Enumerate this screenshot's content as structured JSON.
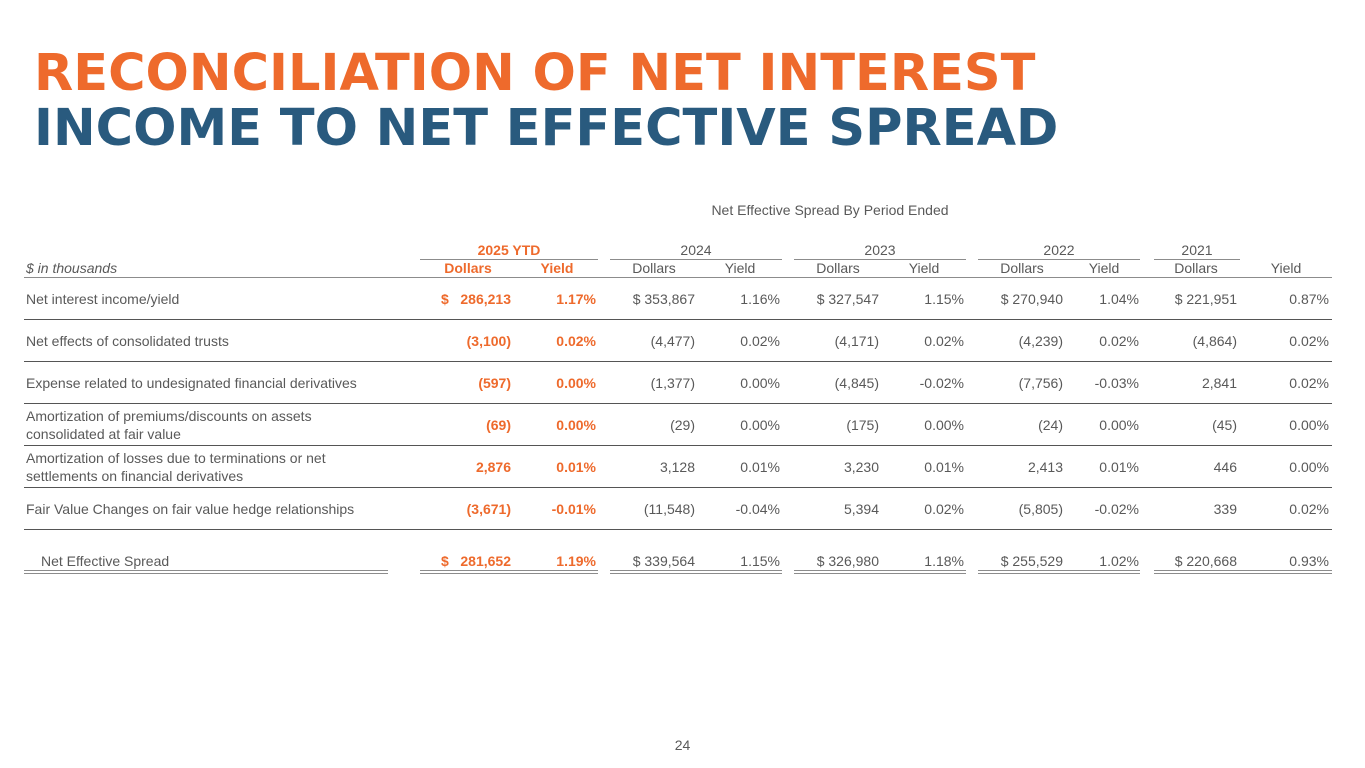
{
  "title": {
    "line1": "RECONCILIATION OF NET INTEREST",
    "line2": "INCOME TO NET EFFECTIVE SPREAD"
  },
  "table": {
    "caption": "Net Effective Spread By Period Ended",
    "units_label": "$ in thousands",
    "years": [
      "2025 YTD",
      "2024",
      "2023",
      "2022",
      "2021"
    ],
    "col_dollars": "Dollars",
    "col_yield": "Yield",
    "rows": [
      {
        "label": "Net interest income/yield",
        "cells": [
          [
            "$   286,213",
            "1.17%"
          ],
          [
            "$ 353,867",
            "1.16%"
          ],
          [
            "$ 327,547",
            "1.15%"
          ],
          [
            "$ 270,940",
            "1.04%"
          ],
          [
            "$ 221,951",
            "0.87%"
          ]
        ]
      },
      {
        "label": "Net effects of consolidated trusts",
        "cells": [
          [
            "(3,100)",
            "0.02%"
          ],
          [
            "(4,477)",
            "0.02%"
          ],
          [
            "(4,171)",
            "0.02%"
          ],
          [
            "(4,239)",
            "0.02%"
          ],
          [
            "(4,864)",
            "0.02%"
          ]
        ]
      },
      {
        "label": "Expense related to undesignated financial derivatives",
        "cells": [
          [
            "(597)",
            "0.00%"
          ],
          [
            "(1,377)",
            "0.00%"
          ],
          [
            "(4,845)",
            "-0.02%"
          ],
          [
            "(7,756)",
            "-0.03%"
          ],
          [
            "2,841",
            "0.02%"
          ]
        ]
      },
      {
        "label": "Amortization of premiums/discounts on assets consolidated at fair value",
        "cells": [
          [
            "(69)",
            "0.00%"
          ],
          [
            "(29)",
            "0.00%"
          ],
          [
            "(175)",
            "0.00%"
          ],
          [
            "(24)",
            "0.00%"
          ],
          [
            "(45)",
            "0.00%"
          ]
        ]
      },
      {
        "label": "Amortization of losses due to terminations or net settlements on financial derivatives",
        "cells": [
          [
            "2,876",
            "0.01%"
          ],
          [
            "3,128",
            "0.01%"
          ],
          [
            "3,230",
            "0.01%"
          ],
          [
            "2,413",
            "0.01%"
          ],
          [
            "446",
            "0.00%"
          ]
        ]
      },
      {
        "label": "Fair Value Changes on fair value hedge relationships",
        "cells": [
          [
            "(3,671)",
            "-0.01%"
          ],
          [
            "(11,548)",
            "-0.04%"
          ],
          [
            "5,394",
            "0.02%"
          ],
          [
            "(5,805)",
            "-0.02%"
          ],
          [
            "339",
            "0.02%"
          ]
        ]
      }
    ],
    "total": {
      "label": "Net Effective Spread",
      "cells": [
        [
          "$   281,652",
          "1.19%"
        ],
        [
          "$ 339,564",
          "1.15%"
        ],
        [
          "$ 326,980",
          "1.18%"
        ],
        [
          "$ 255,529",
          "1.02%"
        ],
        [
          "$ 220,668",
          "0.93%"
        ]
      ]
    }
  },
  "page_number": "24",
  "colors": {
    "accent_orange": "#ee6a2c",
    "accent_blue": "#295a7e",
    "text_gray": "#595959"
  }
}
